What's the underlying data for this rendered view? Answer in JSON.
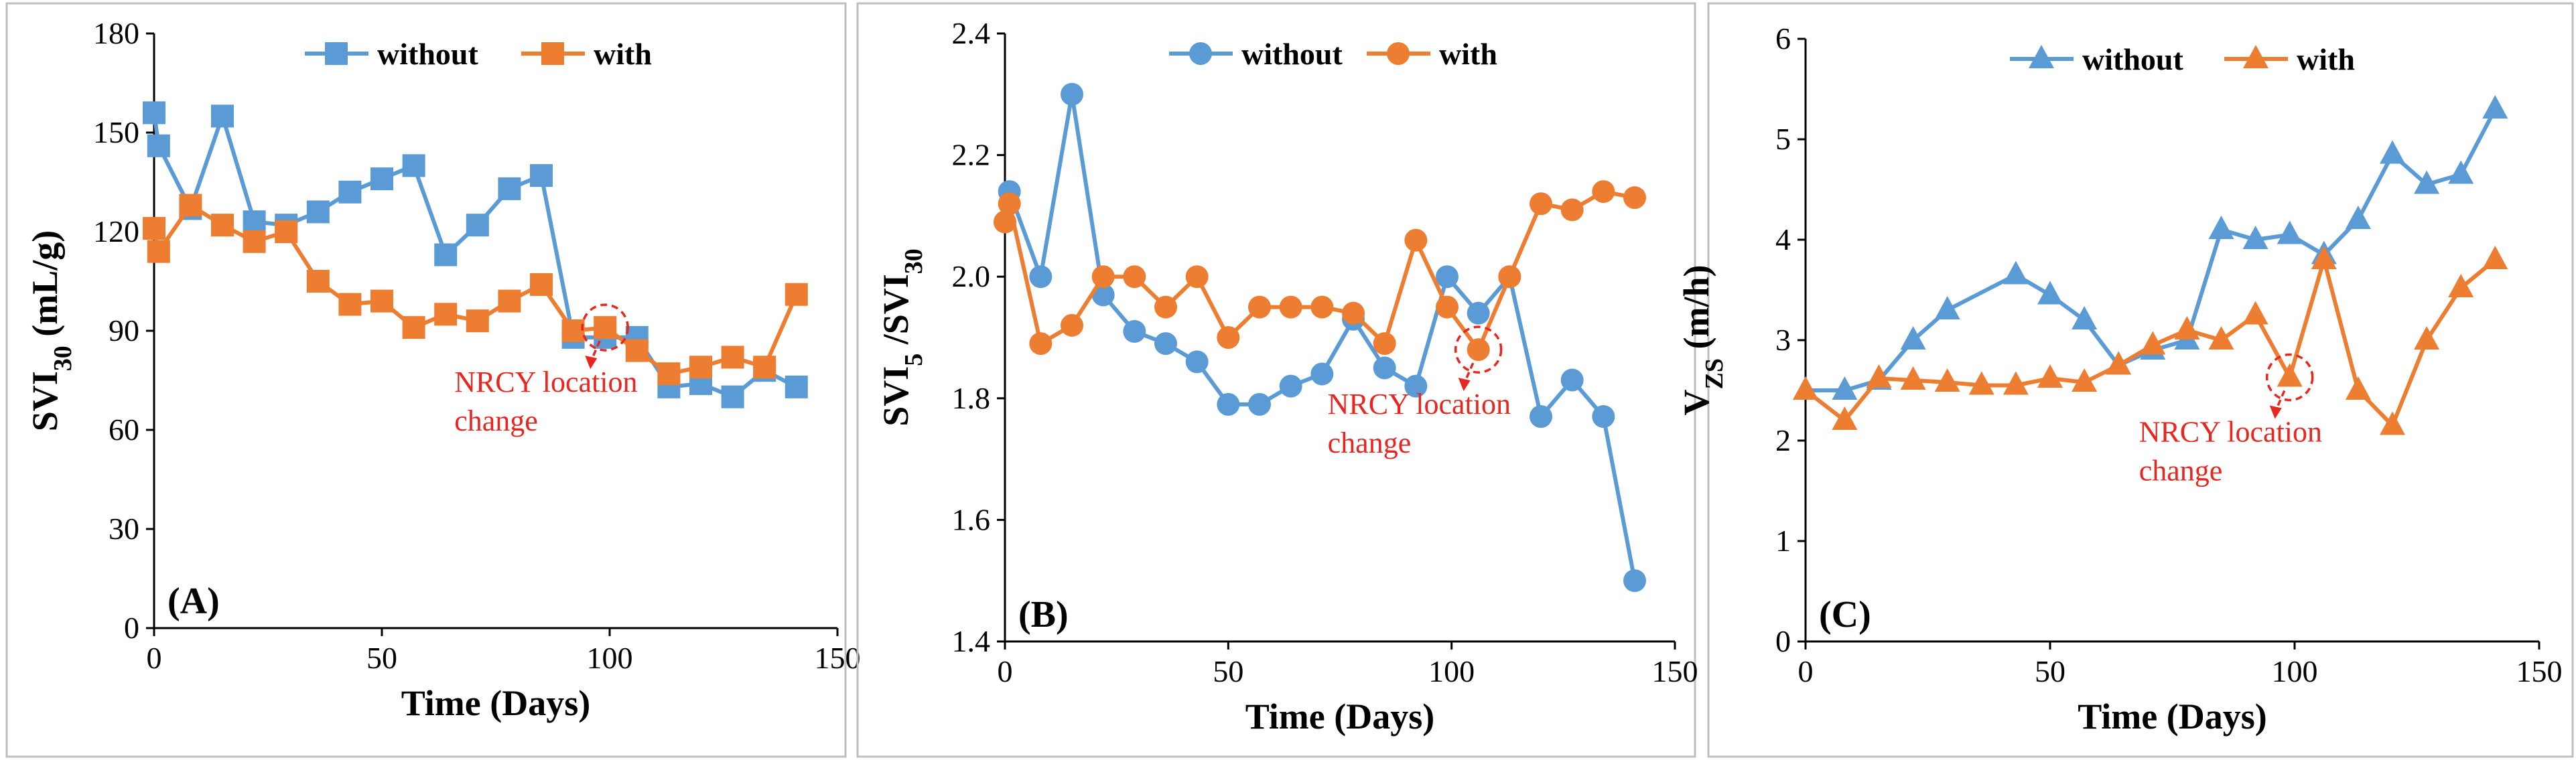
{
  "colors": {
    "without": "#5b9bd5",
    "with": "#ed7d31",
    "annotation": "#e8261f",
    "axis": "#000000",
    "frame": "#bfbfbf"
  },
  "chart_data": [
    {
      "type": "line",
      "panel_label": "(A)",
      "marker": "square",
      "xlabel": "Time (Days)",
      "ylabel": {
        "main": "SVI",
        "sub": "30",
        "suffix": " (mL/g)"
      },
      "xlim": [
        0,
        150
      ],
      "ylim": [
        0,
        180
      ],
      "xticks": [
        0,
        50,
        100,
        150
      ],
      "yticks": [
        0,
        30,
        60,
        90,
        120,
        150,
        180
      ],
      "legend": [
        {
          "label": "without"
        },
        {
          "label": "with"
        }
      ],
      "legend_position": "top-center",
      "annotation": {
        "lines": [
          "NRCY location",
          "change"
        ],
        "x": 99,
        "y": 91
      },
      "series": [
        {
          "name": "without",
          "x": [
            0,
            1,
            8,
            15,
            22,
            29,
            36,
            43,
            50,
            57,
            64,
            71,
            78,
            85,
            92,
            99,
            106,
            113,
            120,
            127,
            134,
            141
          ],
          "y": [
            156,
            146,
            127,
            155,
            123,
            122,
            126,
            132,
            136,
            140,
            113,
            122,
            133,
            137,
            88,
            88,
            88,
            73,
            74,
            70,
            78,
            73
          ]
        },
        {
          "name": "with",
          "x": [
            0,
            1,
            8,
            15,
            22,
            29,
            36,
            43,
            50,
            57,
            64,
            71,
            78,
            85,
            92,
            99,
            106,
            113,
            120,
            127,
            134,
            141
          ],
          "y": [
            121,
            114,
            128,
            122,
            117,
            120,
            105,
            98,
            99,
            91,
            95,
            93,
            99,
            104,
            90,
            91,
            84,
            77,
            79,
            82,
            79,
            101
          ]
        }
      ]
    },
    {
      "type": "line",
      "panel_label": "(B)",
      "marker": "circle",
      "xlabel": "Time (Days)",
      "ylabel": {
        "main": "SVI",
        "sub": "5",
        "mid": " /SVI",
        "sub2": "30"
      },
      "xlim": [
        0,
        150
      ],
      "ylim": [
        1.4,
        2.4
      ],
      "xticks": [
        0,
        50,
        100,
        150
      ],
      "yticks": [
        1.4,
        1.6,
        1.8,
        2.0,
        2.2,
        2.4
      ],
      "ytick_labels": [
        "1.4",
        "1.6",
        "1.8",
        "2.0",
        "2.2",
        "2.4"
      ],
      "legend": [
        {
          "label": "without"
        },
        {
          "label": "with"
        }
      ],
      "legend_position": "top-center",
      "annotation": {
        "lines": [
          "NRCY location",
          "change"
        ],
        "x": 106,
        "y": 1.88
      },
      "series": [
        {
          "name": "without",
          "x": [
            0,
            1,
            8,
            15,
            22,
            29,
            36,
            43,
            50,
            57,
            64,
            71,
            78,
            85,
            92,
            99,
            106,
            113,
            120,
            127,
            134,
            141
          ],
          "y": [
            2.09,
            2.14,
            2.0,
            2.3,
            1.97,
            1.91,
            1.89,
            1.86,
            1.79,
            1.79,
            1.82,
            1.84,
            1.93,
            1.85,
            1.82,
            2.0,
            1.94,
            2.0,
            1.77,
            1.83,
            1.77,
            1.5
          ]
        },
        {
          "name": "with",
          "x": [
            0,
            1,
            8,
            15,
            22,
            29,
            36,
            43,
            50,
            57,
            64,
            71,
            78,
            85,
            92,
            99,
            106,
            113,
            120,
            127,
            134,
            141
          ],
          "y": [
            2.09,
            2.12,
            1.89,
            1.92,
            2.0,
            2.0,
            1.95,
            2.0,
            1.9,
            1.95,
            1.95,
            1.95,
            1.94,
            1.89,
            2.06,
            1.95,
            1.88,
            2.0,
            2.12,
            2.11,
            2.14,
            2.13
          ]
        }
      ]
    },
    {
      "type": "line",
      "panel_label": "(C)",
      "marker": "triangle",
      "xlabel": "Time (Days)",
      "ylabel": {
        "main": "V",
        "sub": "ZS",
        "suffix": " (m/h)"
      },
      "xlim": [
        0,
        150
      ],
      "ylim": [
        0,
        6
      ],
      "xticks": [
        0,
        50,
        100,
        150
      ],
      "yticks": [
        0,
        1,
        2,
        3,
        4,
        5,
        6
      ],
      "legend": [
        {
          "label": "without"
        },
        {
          "label": "with"
        }
      ],
      "legend_position": "top-center",
      "annotation": {
        "lines": [
          "NRCY location",
          "change"
        ],
        "x": 99,
        "y": 2.63
      },
      "series": [
        {
          "name": "without",
          "x": [
            0,
            8,
            15,
            22,
            29,
            43,
            50,
            57,
            64,
            71,
            78,
            85,
            92,
            99,
            106,
            113,
            120,
            127,
            134,
            141
          ],
          "y": [
            2.5,
            2.5,
            2.6,
            3.0,
            3.3,
            3.65,
            3.45,
            3.2,
            2.75,
            2.9,
            3.0,
            4.1,
            4.0,
            4.05,
            3.85,
            4.2,
            4.85,
            4.55,
            4.65,
            5.3
          ]
        },
        {
          "name": "with",
          "x": [
            0,
            8,
            15,
            22,
            29,
            36,
            43,
            50,
            57,
            64,
            71,
            78,
            85,
            92,
            99,
            106,
            113,
            120,
            127,
            134,
            141
          ],
          "y": [
            2.5,
            2.2,
            2.62,
            2.6,
            2.58,
            2.55,
            2.55,
            2.62,
            2.58,
            2.75,
            2.95,
            3.1,
            3.0,
            3.25,
            2.63,
            3.8,
            2.5,
            2.15,
            3.0,
            3.52,
            3.8
          ]
        }
      ]
    }
  ]
}
